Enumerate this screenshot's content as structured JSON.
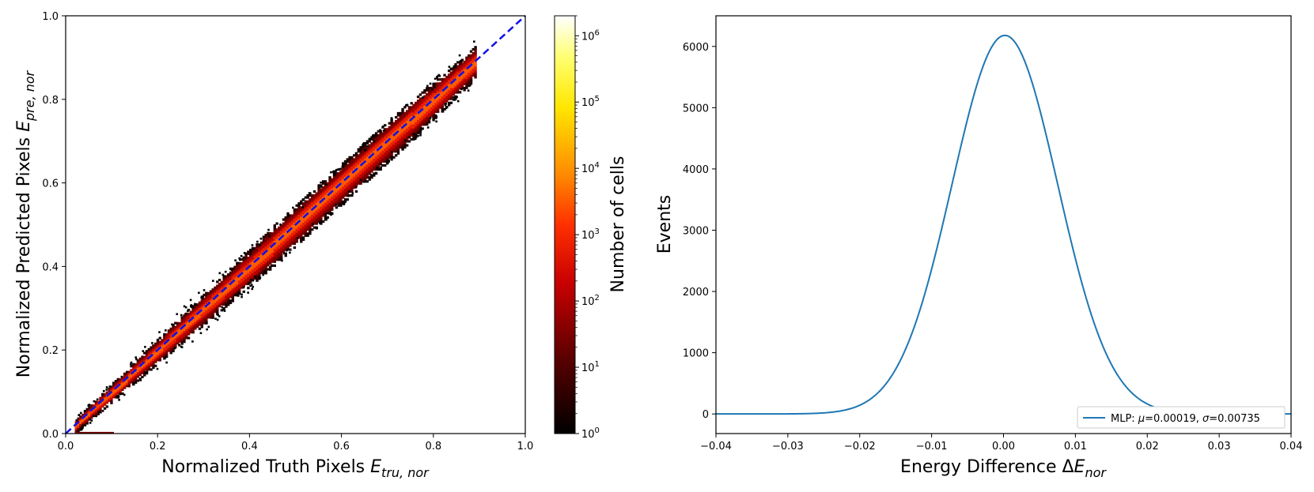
{
  "chart_data": [
    {
      "type": "heatmap",
      "xlabel_main": "Normalized Truth Pixels ",
      "xlabel_var": "E",
      "xlabel_sub": "tru, nor",
      "ylabel_main": "Normalized Predicted Pixels ",
      "ylabel_var": "E",
      "ylabel_sub": "pre, nor",
      "xlim": [
        0.0,
        1.0
      ],
      "ylim": [
        0.0,
        1.0
      ],
      "xticks": [
        "0.0",
        "0.2",
        "0.4",
        "0.6",
        "0.8",
        "1.0"
      ],
      "yticks": [
        "0.0",
        "0.2",
        "0.4",
        "0.6",
        "0.8",
        "1.0"
      ],
      "diagonal": {
        "style": "dashed",
        "color": "#1010e6",
        "from": [
          0.0,
          0.0
        ],
        "to": [
          1.0,
          1.0
        ]
      },
      "band": {
        "x_start": 0.02,
        "x_end": 0.89,
        "colormap": "hot"
      },
      "colorbar": {
        "label": "Number of cells",
        "scale": "log",
        "range": [
          1,
          2000000
        ],
        "tick_base": "10",
        "tick_exponents": [
          "0",
          "1",
          "2",
          "3",
          "4",
          "5",
          "6"
        ]
      }
    },
    {
      "type": "line",
      "xlabel_main": "Energy Difference Δ",
      "xlabel_var": "E",
      "xlabel_sub": "nor",
      "ylabel": "Events",
      "xlim": [
        -0.04,
        0.04
      ],
      "ylim": [
        -320,
        6500
      ],
      "xticks": [
        "−0.04",
        "−0.03",
        "−0.02",
        "−0.01",
        "0.00",
        "0.01",
        "0.02",
        "0.03",
        "0.04"
      ],
      "yticks": [
        "0",
        "1000",
        "2000",
        "3000",
        "4000",
        "5000",
        "6000"
      ],
      "series": [
        {
          "name_prefix": "MLP: ",
          "mu_symbol": "μ",
          "mu_value": "=0.00019, ",
          "sigma_symbol": "σ",
          "sigma_value": "=0.00735",
          "color": "#1f77b4",
          "gaussian": {
            "peak": 6180,
            "mu": 0.00019,
            "sigma": 0.00735
          }
        }
      ],
      "legend_position": "lower-right"
    }
  ]
}
